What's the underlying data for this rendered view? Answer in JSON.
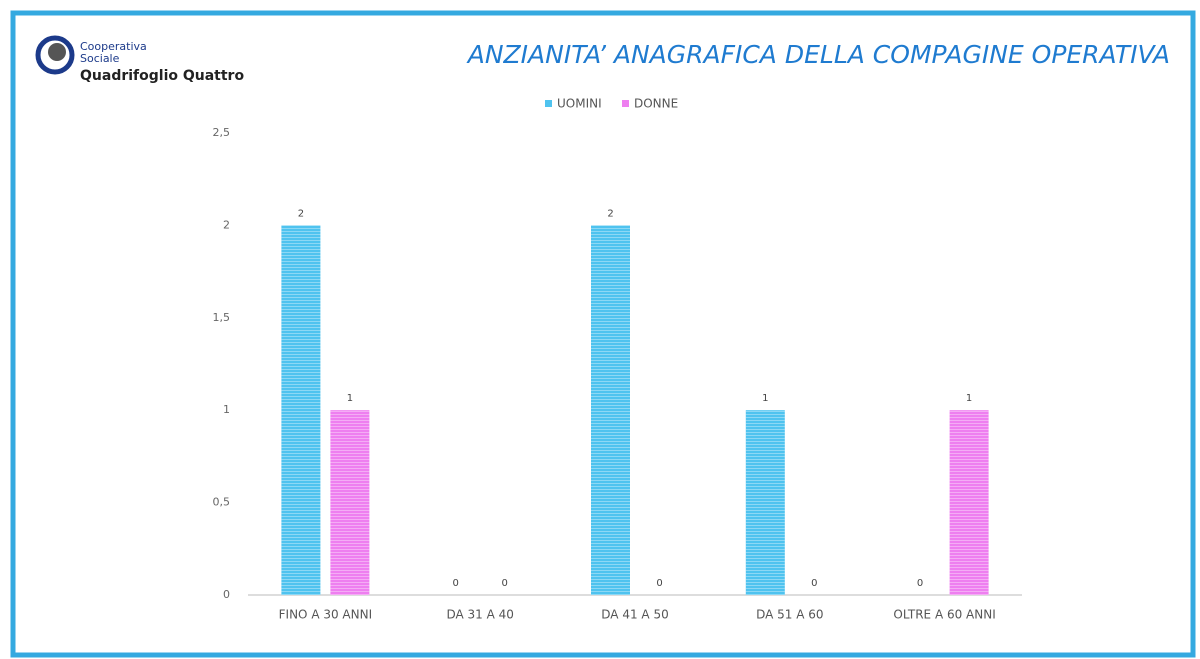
{
  "logo": {
    "line1": "Cooperativa",
    "line2": "Sociale",
    "name": "Quadrifoglio Quattro"
  },
  "chart_data": {
    "type": "bar",
    "title": "ANZIANITA’ ANAGRAFICA DELLA COMPAGINE OPERATIVA",
    "categories": [
      "FINO A 30 ANNI",
      "DA 31 A 40",
      "DA 41 A 50",
      "DA 51 A 60",
      "OLTRE A 60 ANNI"
    ],
    "series": [
      {
        "name": "UOMINI",
        "color": "#4fc3ef",
        "values": [
          2,
          0,
          2,
          1,
          0
        ]
      },
      {
        "name": "DONNE",
        "color": "#ee7ff0",
        "values": [
          1,
          0,
          0,
          0,
          1
        ]
      }
    ],
    "ylim": [
      0,
      2.5
    ],
    "yticks": [
      0,
      {
        "value": 0.5,
        "label": "0,5"
      },
      1,
      {
        "value": 1.5,
        "label": "1,5"
      },
      2,
      {
        "value": 2.5,
        "label": "2,5"
      }
    ],
    "legend": "top",
    "grid": false
  }
}
